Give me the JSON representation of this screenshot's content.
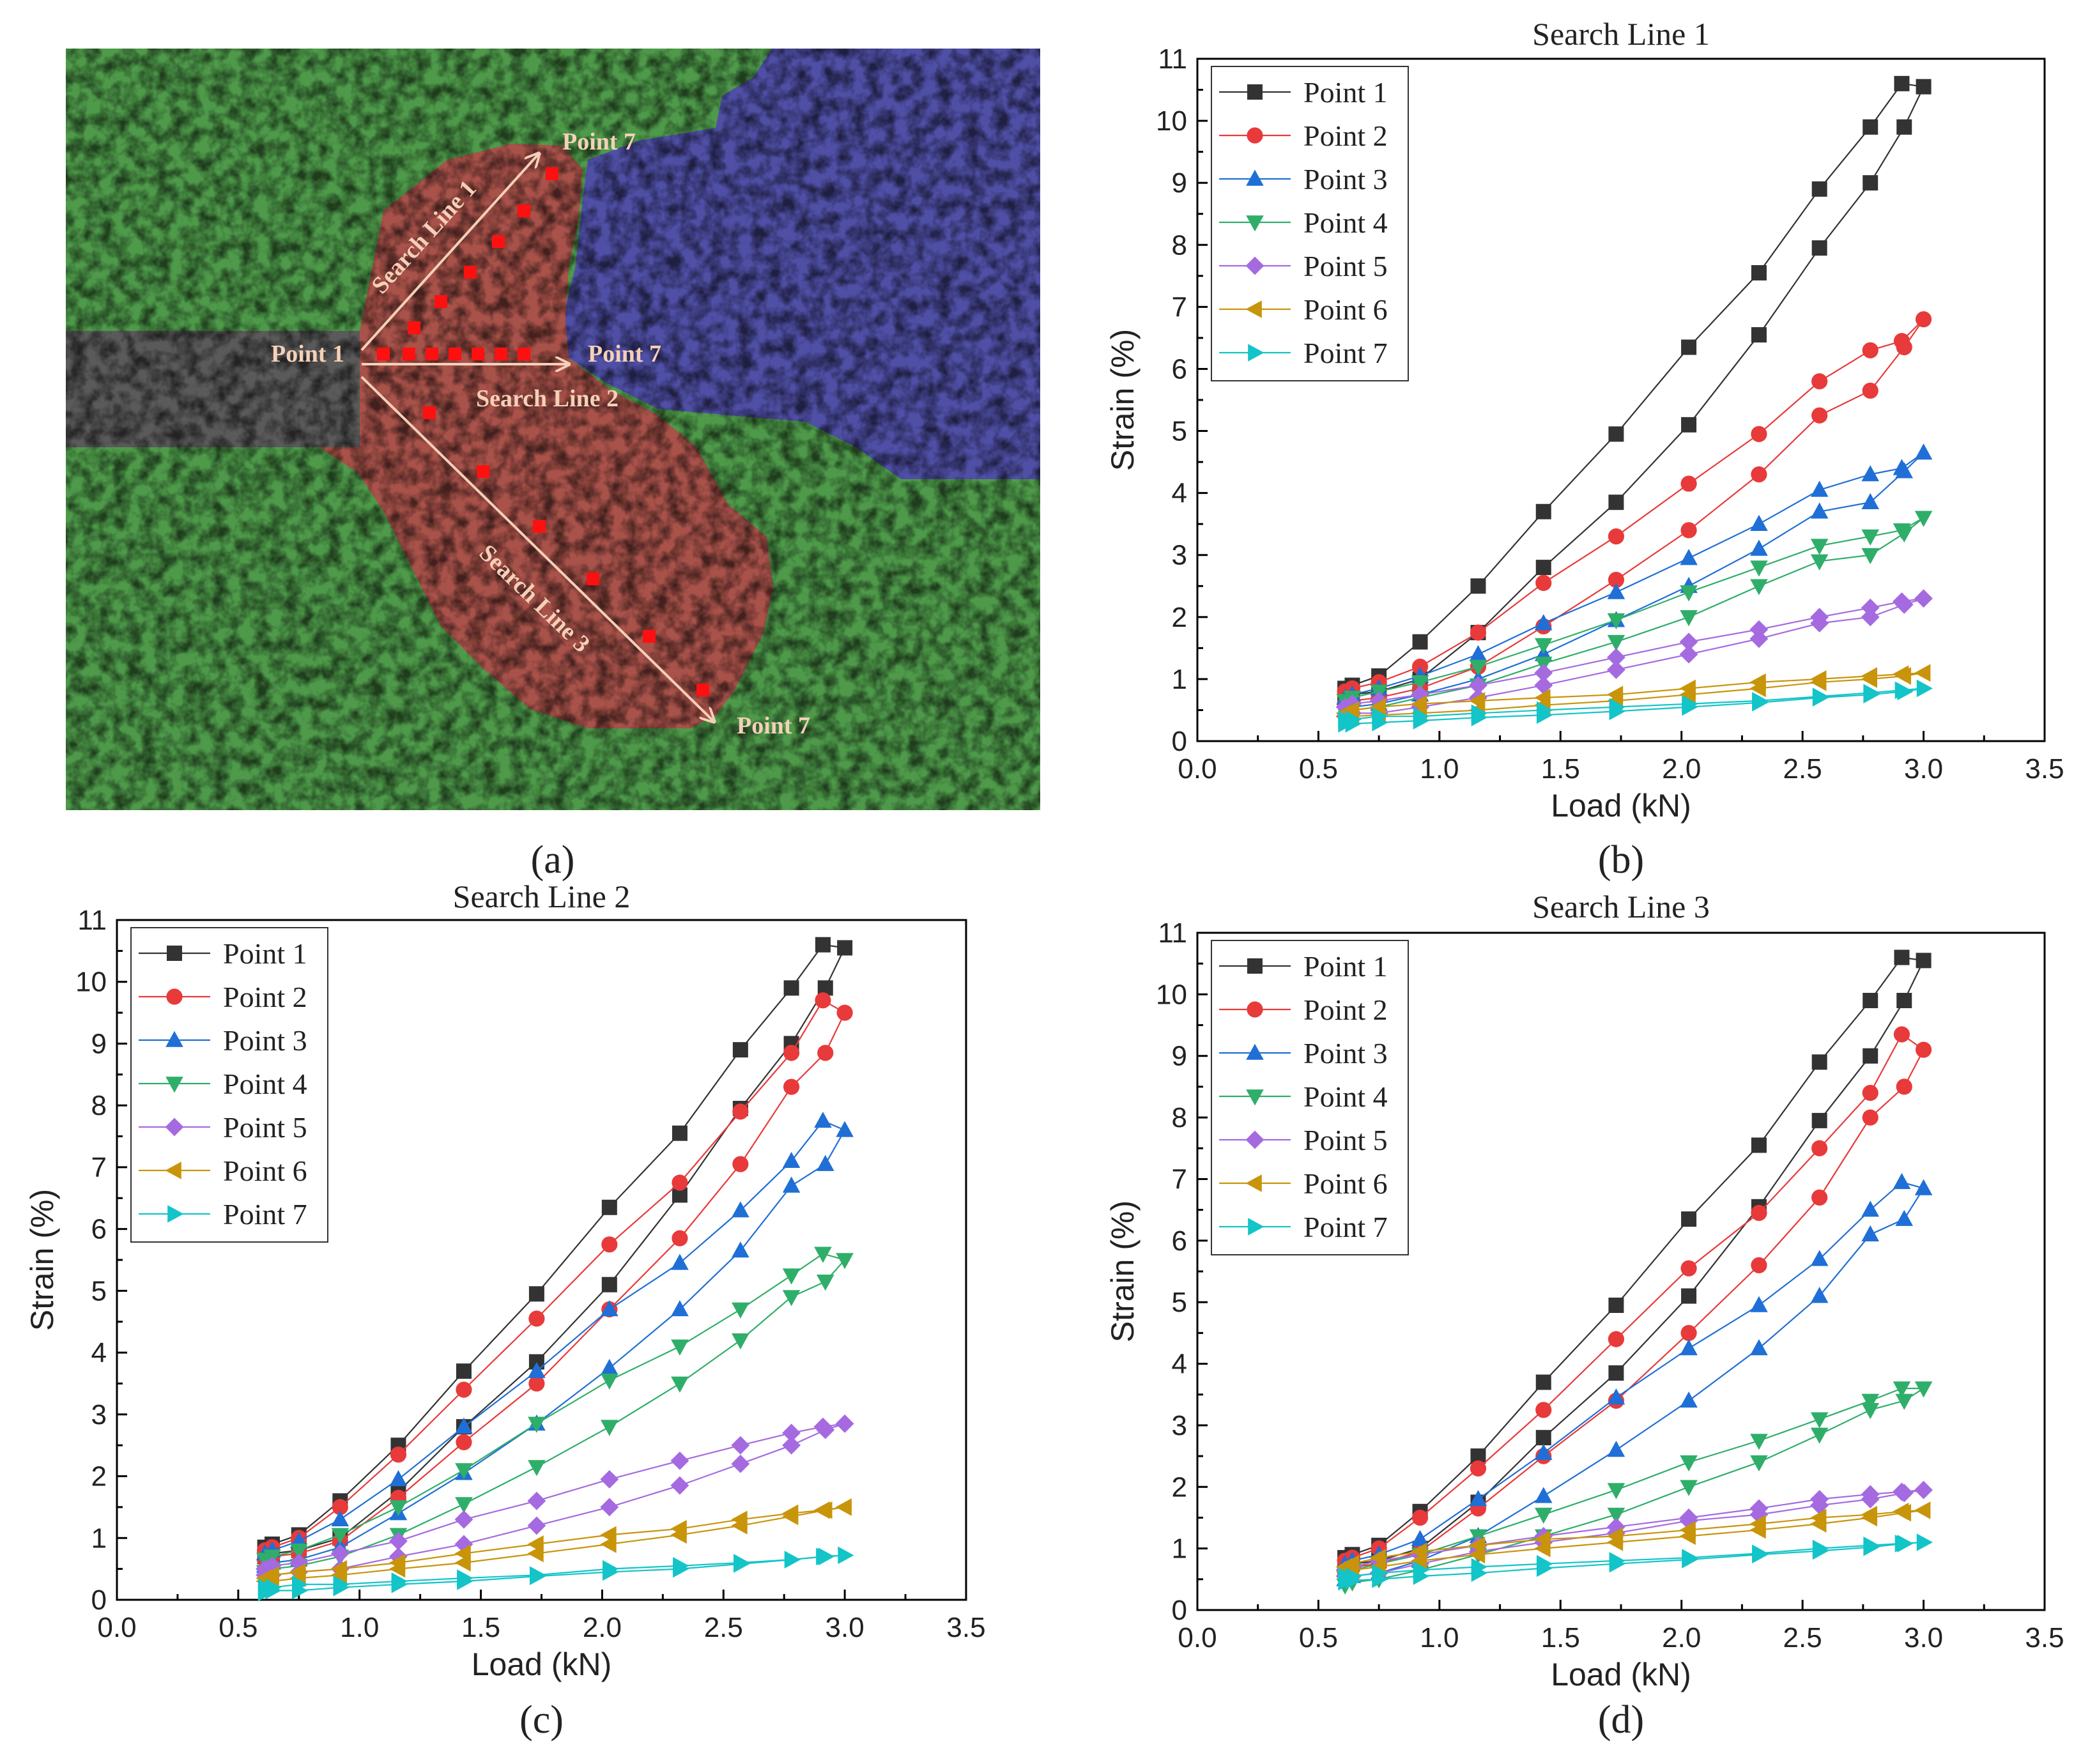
{
  "colors": {
    "map_green": "#4e9a4a",
    "map_blue": "#4f4fa6",
    "map_red": "#a8524a",
    "map_gray": "#5a5a5a",
    "map_marker": "#ff1010",
    "map_arrow": "#f5d0b8",
    "series": [
      "#333333",
      "#e83a3a",
      "#1f6fd6",
      "#2fae6a",
      "#a56ae0",
      "#c8940a",
      "#13c4c8"
    ]
  },
  "map": {
    "panel_label": "(a)",
    "labels": {
      "point1": "Point 1",
      "line1_end": "Point 7",
      "line2_end": "Point 7",
      "line3_end": "Point 7",
      "line1": "Search Line 1",
      "line2": "Search Line 2",
      "line3": "Search Line 3"
    }
  },
  "chart_data": [
    {
      "type": "line",
      "panel_label": "(b)",
      "title": "Search Line 1",
      "xlabel": "Load (kN)",
      "ylabel": "Strain (%)",
      "xlim": [
        0.0,
        3.5
      ],
      "ylim": [
        0,
        11
      ],
      "xticks": [
        "0.0",
        "0.5",
        "1.0",
        "1.5",
        "2.0",
        "2.5",
        "3.0",
        "3.5"
      ],
      "yticks": [
        "0",
        "1",
        "2",
        "3",
        "4",
        "5",
        "6",
        "7",
        "8",
        "9",
        "10",
        "11"
      ],
      "x": [
        0.61,
        0.64,
        0.75,
        0.92,
        1.16,
        1.43,
        1.73,
        2.03,
        2.32,
        2.57,
        2.78,
        2.91,
        3.0,
        2.92,
        2.78,
        2.57,
        2.32,
        2.03,
        1.73,
        1.43,
        1.16,
        0.92,
        0.75,
        0.64,
        0.61
      ],
      "series": [
        {
          "name": "Point 1",
          "marker": "square",
          "values": [
            0.85,
            0.9,
            1.05,
            1.6,
            2.5,
            3.7,
            4.95,
            6.35,
            7.55,
            8.9,
            9.9,
            10.6,
            10.55,
            9.9,
            9.0,
            7.95,
            6.55,
            5.1,
            3.85,
            2.8,
            1.75,
            1.0,
            0.8,
            0.75,
            0.7
          ]
        },
        {
          "name": "Point 2",
          "marker": "circle",
          "values": [
            0.8,
            0.85,
            0.95,
            1.2,
            1.75,
            2.55,
            3.3,
            4.15,
            4.95,
            5.8,
            6.3,
            6.45,
            6.8,
            6.35,
            5.65,
            5.25,
            4.3,
            3.4,
            2.6,
            1.85,
            1.2,
            0.85,
            0.7,
            0.65,
            0.6
          ]
        },
        {
          "name": "Point 3",
          "marker": "triangle-up",
          "values": [
            0.7,
            0.75,
            0.85,
            1.05,
            1.4,
            1.9,
            2.4,
            2.95,
            3.5,
            4.05,
            4.3,
            4.4,
            4.65,
            4.35,
            3.85,
            3.7,
            3.1,
            2.5,
            1.95,
            1.4,
            1.0,
            0.75,
            0.6,
            0.55,
            0.5
          ]
        },
        {
          "name": "Point 4",
          "marker": "triangle-down",
          "values": [
            0.65,
            0.7,
            0.8,
            0.95,
            1.2,
            1.55,
            1.95,
            2.4,
            2.8,
            3.15,
            3.3,
            3.4,
            3.6,
            3.35,
            3.0,
            2.9,
            2.5,
            2.0,
            1.6,
            1.25,
            0.9,
            0.7,
            0.55,
            0.5,
            0.45
          ]
        },
        {
          "name": "Point 5",
          "marker": "diamond",
          "values": [
            0.55,
            0.6,
            0.65,
            0.75,
            0.9,
            1.1,
            1.35,
            1.6,
            1.8,
            2.0,
            2.15,
            2.25,
            2.3,
            2.2,
            2.0,
            1.9,
            1.65,
            1.4,
            1.15,
            0.9,
            0.7,
            0.55,
            0.45,
            0.45,
            0.4
          ]
        },
        {
          "name": "Point 6",
          "marker": "triangle-left",
          "values": [
            0.45,
            0.5,
            0.55,
            0.6,
            0.65,
            0.7,
            0.75,
            0.85,
            0.95,
            1.0,
            1.05,
            1.08,
            1.1,
            1.05,
            1.0,
            0.95,
            0.85,
            0.75,
            0.65,
            0.58,
            0.5,
            0.45,
            0.42,
            0.4,
            0.4
          ]
        },
        {
          "name": "Point 7",
          "marker": "triangle-right",
          "values": [
            0.35,
            0.35,
            0.4,
            0.4,
            0.45,
            0.5,
            0.55,
            0.6,
            0.65,
            0.72,
            0.78,
            0.82,
            0.85,
            0.8,
            0.75,
            0.7,
            0.62,
            0.55,
            0.48,
            0.42,
            0.38,
            0.33,
            0.3,
            0.28,
            0.28
          ]
        }
      ]
    },
    {
      "type": "line",
      "panel_label": "(c)",
      "title": "Search Line 2",
      "xlabel": "Load (kN)",
      "ylabel": "Strain (%)",
      "xlim": [
        0.0,
        3.5
      ],
      "ylim": [
        0,
        11
      ],
      "xticks": [
        "0.0",
        "0.5",
        "1.0",
        "1.5",
        "2.0",
        "2.5",
        "3.0",
        "3.5"
      ],
      "yticks": [
        "0",
        "1",
        "2",
        "3",
        "4",
        "5",
        "6",
        "7",
        "8",
        "9",
        "10",
        "11"
      ],
      "x": [
        0.61,
        0.64,
        0.75,
        0.92,
        1.16,
        1.43,
        1.73,
        2.03,
        2.32,
        2.57,
        2.78,
        2.91,
        3.0,
        2.92,
        2.78,
        2.57,
        2.32,
        2.03,
        1.73,
        1.43,
        1.16,
        0.92,
        0.75,
        0.64,
        0.61
      ],
      "series": [
        {
          "name": "Point 1",
          "marker": "square",
          "values": [
            0.85,
            0.9,
            1.05,
            1.6,
            2.5,
            3.7,
            4.95,
            6.35,
            7.55,
            8.9,
            9.9,
            10.6,
            10.55,
            9.9,
            9.0,
            7.95,
            6.55,
            5.1,
            3.85,
            2.8,
            1.75,
            1.0,
            0.8,
            0.75,
            0.7
          ]
        },
        {
          "name": "Point 2",
          "marker": "circle",
          "values": [
            0.8,
            0.85,
            1.0,
            1.5,
            2.35,
            3.4,
            4.55,
            5.75,
            6.75,
            7.9,
            8.85,
            9.7,
            9.5,
            8.85,
            8.3,
            7.05,
            5.85,
            4.7,
            3.5,
            2.55,
            1.65,
            0.95,
            0.75,
            0.7,
            0.65
          ]
        },
        {
          "name": "Point 3",
          "marker": "triangle-up",
          "values": [
            0.75,
            0.8,
            0.95,
            1.3,
            1.95,
            2.8,
            3.7,
            4.7,
            5.45,
            6.3,
            7.1,
            7.75,
            7.6,
            7.05,
            6.7,
            5.65,
            4.7,
            3.75,
            2.85,
            2.05,
            1.4,
            0.85,
            0.65,
            0.6,
            0.55
          ]
        },
        {
          "name": "Point 4",
          "marker": "triangle-down",
          "values": [
            0.65,
            0.7,
            0.8,
            1.05,
            1.5,
            2.1,
            2.85,
            3.55,
            4.1,
            4.7,
            5.25,
            5.6,
            5.5,
            5.15,
            4.9,
            4.2,
            3.5,
            2.8,
            2.15,
            1.55,
            1.05,
            0.7,
            0.55,
            0.5,
            0.45
          ]
        },
        {
          "name": "Point 5",
          "marker": "diamond",
          "values": [
            0.5,
            0.55,
            0.6,
            0.75,
            0.95,
            1.3,
            1.6,
            1.95,
            2.25,
            2.5,
            2.7,
            2.8,
            2.85,
            2.75,
            2.5,
            2.2,
            1.85,
            1.5,
            1.2,
            0.9,
            0.7,
            0.5,
            0.45,
            0.4,
            0.4
          ]
        },
        {
          "name": "Point 6",
          "marker": "triangle-left",
          "values": [
            0.35,
            0.4,
            0.45,
            0.5,
            0.6,
            0.75,
            0.9,
            1.05,
            1.15,
            1.3,
            1.4,
            1.45,
            1.5,
            1.45,
            1.35,
            1.2,
            1.05,
            0.9,
            0.75,
            0.6,
            0.5,
            0.4,
            0.35,
            0.3,
            0.3
          ]
        },
        {
          "name": "Point 7",
          "marker": "triangle-right",
          "values": [
            0.2,
            0.2,
            0.25,
            0.25,
            0.3,
            0.35,
            0.4,
            0.5,
            0.55,
            0.6,
            0.65,
            0.7,
            0.72,
            0.7,
            0.65,
            0.58,
            0.5,
            0.45,
            0.38,
            0.3,
            0.25,
            0.2,
            0.15,
            0.15,
            0.12
          ]
        }
      ]
    },
    {
      "type": "line",
      "panel_label": "(d)",
      "title": "Search Line 3",
      "xlabel": "Load (kN)",
      "ylabel": "Strain (%)",
      "xlim": [
        0.0,
        3.5
      ],
      "ylim": [
        0,
        11
      ],
      "xticks": [
        "0.0",
        "0.5",
        "1.0",
        "1.5",
        "2.0",
        "2.5",
        "3.0",
        "3.5"
      ],
      "yticks": [
        "0",
        "1",
        "2",
        "3",
        "4",
        "5",
        "6",
        "7",
        "8",
        "9",
        "10",
        "11"
      ],
      "x": [
        0.61,
        0.64,
        0.75,
        0.92,
        1.16,
        1.43,
        1.73,
        2.03,
        2.32,
        2.57,
        2.78,
        2.91,
        3.0,
        2.92,
        2.78,
        2.57,
        2.32,
        2.03,
        1.73,
        1.43,
        1.16,
        0.92,
        0.75,
        0.64,
        0.61
      ],
      "series": [
        {
          "name": "Point 1",
          "marker": "square",
          "values": [
            0.85,
            0.9,
            1.05,
            1.6,
            2.5,
            3.7,
            4.95,
            6.35,
            7.55,
            8.9,
            9.9,
            10.6,
            10.55,
            9.9,
            9.0,
            7.95,
            6.55,
            5.1,
            3.85,
            2.8,
            1.75,
            1.0,
            0.8,
            0.75,
            0.7
          ]
        },
        {
          "name": "Point 2",
          "marker": "circle",
          "values": [
            0.8,
            0.85,
            1.0,
            1.5,
            2.3,
            3.25,
            4.4,
            5.55,
            6.45,
            7.5,
            8.4,
            9.35,
            9.1,
            8.5,
            8.0,
            6.7,
            5.6,
            4.5,
            3.4,
            2.5,
            1.65,
            0.95,
            0.75,
            0.7,
            0.65
          ]
        },
        {
          "name": "Point 3",
          "marker": "triangle-up",
          "values": [
            0.75,
            0.8,
            0.9,
            1.15,
            1.8,
            2.55,
            3.45,
            4.25,
            4.95,
            5.7,
            6.5,
            6.95,
            6.85,
            6.35,
            6.1,
            5.1,
            4.25,
            3.4,
            2.6,
            1.85,
            1.2,
            0.8,
            0.6,
            0.55,
            0.5
          ]
        },
        {
          "name": "Point 4",
          "marker": "triangle-down",
          "values": [
            0.6,
            0.65,
            0.75,
            0.9,
            1.2,
            1.55,
            1.95,
            2.4,
            2.75,
            3.1,
            3.4,
            3.6,
            3.6,
            3.4,
            3.25,
            2.85,
            2.4,
            2.0,
            1.55,
            1.2,
            0.9,
            0.65,
            0.5,
            0.45,
            0.4
          ]
        },
        {
          "name": "Point 5",
          "marker": "diamond",
          "values": [
            0.65,
            0.7,
            0.8,
            0.9,
            1.05,
            1.2,
            1.35,
            1.5,
            1.65,
            1.8,
            1.88,
            1.92,
            1.95,
            1.9,
            1.8,
            1.7,
            1.55,
            1.45,
            1.25,
            1.1,
            0.95,
            0.75,
            0.6,
            0.55,
            0.55
          ]
        },
        {
          "name": "Point 6",
          "marker": "triangle-left",
          "values": [
            0.7,
            0.75,
            0.85,
            0.95,
            1.05,
            1.15,
            1.2,
            1.3,
            1.4,
            1.5,
            1.55,
            1.6,
            1.62,
            1.58,
            1.5,
            1.4,
            1.3,
            1.2,
            1.1,
            1.0,
            0.9,
            0.8,
            0.7,
            0.65,
            0.62
          ]
        },
        {
          "name": "Point 7",
          "marker": "triangle-right",
          "values": [
            0.55,
            0.55,
            0.6,
            0.65,
            0.7,
            0.75,
            0.8,
            0.85,
            0.92,
            1.0,
            1.05,
            1.08,
            1.1,
            1.08,
            1.02,
            0.96,
            0.9,
            0.82,
            0.75,
            0.68,
            0.6,
            0.55,
            0.5,
            0.48,
            0.46
          ]
        }
      ]
    }
  ]
}
